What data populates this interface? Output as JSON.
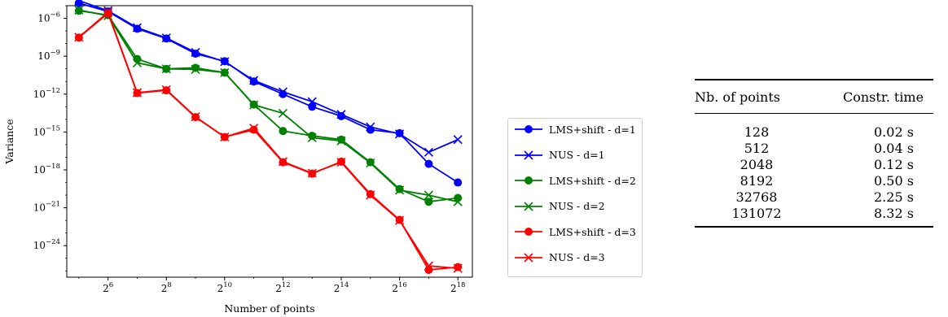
{
  "chart_data": [
    {
      "type": "line",
      "xlabel": "Number of points",
      "ylabel": "Variance",
      "x_scale": "log2",
      "y_scale": "log10",
      "xlim": [
        24,
        370000
      ],
      "ylim": [
        3.2e-27,
        1e-05
      ],
      "x_ticks": [
        64,
        256,
        1024,
        4096,
        16384,
        65536,
        262144
      ],
      "x_tick_labels": [
        [
          "2",
          "6"
        ],
        [
          "2",
          "8"
        ],
        [
          "2",
          "10"
        ],
        [
          "2",
          "12"
        ],
        [
          "2",
          "14"
        ],
        [
          "2",
          "16"
        ],
        [
          "2",
          "18"
        ]
      ],
      "y_ticks": [
        1e-06,
        1e-09,
        1e-12,
        1e-15,
        1e-18,
        1e-21,
        1e-24
      ],
      "y_tick_labels": [
        [
          "10",
          "−6"
        ],
        [
          "10",
          "−9"
        ],
        [
          "10",
          "−12"
        ],
        [
          "10",
          "−15"
        ],
        [
          "10",
          "−18"
        ],
        [
          "10",
          "−21"
        ],
        [
          "10",
          "−24"
        ]
      ],
      "x": [
        32,
        64,
        128,
        256,
        512,
        1024,
        2048,
        4096,
        8192,
        16384,
        32768,
        65536,
        131072,
        262144
      ],
      "legend_position": "right, outside plot",
      "series": [
        {
          "name": "LMS+shift - d=1",
          "color": "#0000ff",
          "marker": "circle",
          "values": [
            1.6e-05,
            3.5e-06,
            1.5e-07,
            2.5e-08,
            1.6e-09,
            4e-10,
            1e-11,
            1e-12,
            1e-13,
            1.8e-14,
            1.5e-15,
            8e-16,
            3e-18,
            1e-19
          ]
        },
        {
          "name": "NUS - d=1",
          "color": "#0000ff",
          "marker": "x",
          "values": [
            2.5e-05,
            4e-06,
            1.8e-07,
            2.8e-08,
            2e-09,
            3.7e-10,
            1.2e-11,
            1.5e-12,
            2.5e-13,
            2.5e-14,
            2.5e-15,
            7e-16,
            2.5e-17,
            2.5e-16
          ]
        },
        {
          "name": "LMS+shift - d=2",
          "color": "#008000",
          "marker": "circle",
          "values": [
            4e-06,
            1.8e-06,
            6e-10,
            1e-10,
            1.2e-10,
            5e-11,
            1.5e-13,
            1.2e-15,
            5e-16,
            2.5e-16,
            4e-18,
            3e-20,
            3e-21,
            6e-21
          ]
        },
        {
          "name": "NUS - d=2",
          "color": "#008000",
          "marker": "x",
          "values": [
            4.5e-06,
            1.6e-06,
            3e-10,
            1e-10,
            9e-11,
            5e-11,
            1.4e-13,
            3e-14,
            3.5e-16,
            2e-16,
            3.5e-18,
            2.5e-20,
            1e-20,
            3e-21
          ]
        },
        {
          "name": "LMS+shift - d=3",
          "color": "#ff0000",
          "marker": "circle",
          "values": [
            3e-08,
            2.5e-06,
            1.2e-12,
            2e-12,
            1.5e-14,
            4e-16,
            1.5e-15,
            4e-18,
            5e-19,
            4.5e-18,
            1.2e-20,
            1.1e-22,
            1.2e-26,
            2e-26
          ]
        },
        {
          "name": "NUS - d=3",
          "color": "#ff0000",
          "marker": "x",
          "values": [
            3.2e-08,
            3e-06,
            1.3e-12,
            2.2e-12,
            1.6e-14,
            4e-16,
            2e-15,
            4.5e-18,
            5.5e-19,
            4e-18,
            1e-20,
            1e-22,
            2.5e-26,
            1.6e-26
          ]
        }
      ]
    },
    {
      "type": "table",
      "columns": [
        "Nb. of points",
        "Constr. time"
      ],
      "rows": [
        [
          "128",
          "0.02 s"
        ],
        [
          "512",
          "0.04 s"
        ],
        [
          "2048",
          "0.12 s"
        ],
        [
          "8192",
          "0.50 s"
        ],
        [
          "32768",
          "2.25 s"
        ],
        [
          "131072",
          "8.32 s"
        ]
      ]
    }
  ]
}
